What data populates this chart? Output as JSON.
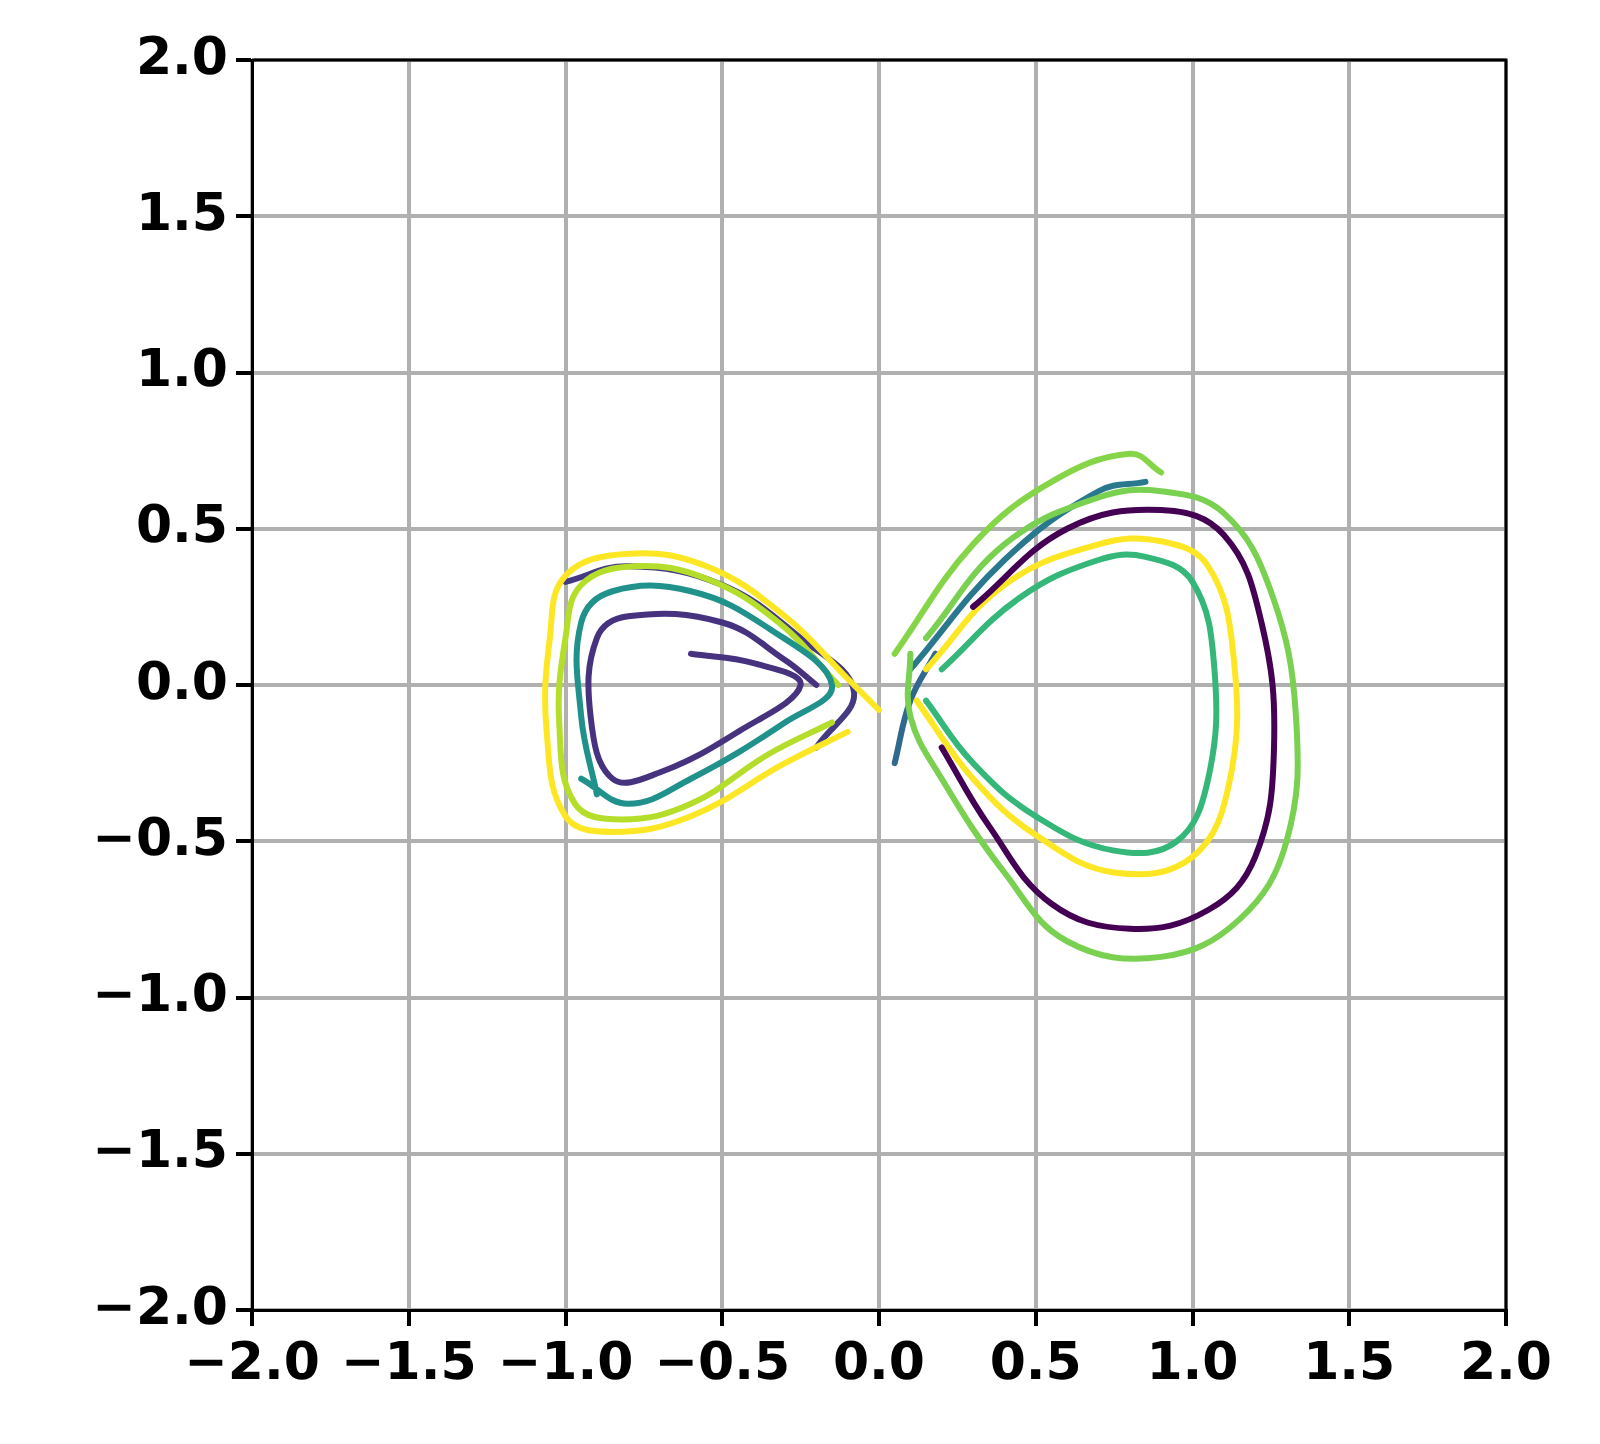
{
  "chart_data": {
    "type": "line",
    "xlim": [
      -2,
      2
    ],
    "ylim": [
      -2,
      2
    ],
    "xticks": [
      {
        "value": -2,
        "label": "−2.0"
      },
      {
        "value": -1.5,
        "label": "−1.5"
      },
      {
        "value": -1,
        "label": "−1.0"
      },
      {
        "value": -0.5,
        "label": "−0.5"
      },
      {
        "value": 0,
        "label": "0.0"
      },
      0.5,
      {
        "value": 1,
        "label": "1.0"
      },
      1.5,
      {
        "value": 2,
        "label": "2.0"
      }
    ],
    "yticks": [
      {
        "value": -2,
        "label": "−2.0"
      },
      {
        "value": -1.5,
        "label": "−1.5"
      },
      {
        "value": -1,
        "label": "−1.0"
      },
      {
        "value": -0.5,
        "label": "−0.5"
      },
      {
        "value": 0,
        "label": "0.0"
      },
      0.5,
      {
        "value": 1,
        "label": "1.0"
      },
      1.5,
      {
        "value": 2,
        "label": "2.0"
      }
    ],
    "grid": true,
    "legend": false,
    "marker": "none",
    "line_style": "solid",
    "series": [
      {
        "color": "#46327e",
        "x": [
          -0.6,
          -0.4,
          -0.25,
          -0.45,
          -0.7,
          -0.85,
          -0.92,
          -0.9,
          -0.8,
          -0.5,
          -0.3,
          -0.2
        ],
        "values": [
          0.1,
          0.07,
          0,
          -0.15,
          -0.28,
          -0.3,
          -0.1,
          0.15,
          0.22,
          0.2,
          0.08,
          0
        ]
      },
      {
        "color": "#21918c",
        "x": [
          -0.9,
          -0.95,
          -0.95,
          -0.85,
          -0.6,
          -0.35,
          -0.15,
          -0.3,
          -0.6,
          -0.8,
          -0.95
        ],
        "values": [
          -0.35,
          -0.1,
          0.2,
          0.3,
          0.3,
          0.18,
          0,
          -0.12,
          -0.3,
          -0.38,
          -0.3
        ]
      },
      {
        "color": "#fde725",
        "x": [
          -0.1,
          -0.3,
          -0.6,
          -0.85,
          -1.0,
          -1.06,
          -1.05,
          -1.0,
          -0.8,
          -0.55,
          -0.3,
          -0.1,
          0.0
        ],
        "values": [
          -0.15,
          -0.25,
          -0.42,
          -0.47,
          -0.42,
          -0.15,
          0.15,
          0.35,
          0.42,
          0.38,
          0.22,
          0.02,
          -0.08
        ]
      },
      {
        "color": "#b5de2b",
        "x": [
          -0.15,
          -0.35,
          -0.6,
          -0.82,
          -0.97,
          -1.02,
          -1.0,
          -0.95,
          -0.78,
          -0.55,
          -0.32,
          -0.13
        ],
        "values": [
          -0.12,
          -0.22,
          -0.38,
          -0.43,
          -0.38,
          -0.12,
          0.15,
          0.32,
          0.38,
          0.34,
          0.2,
          0.0
        ]
      },
      {
        "color": "#443983",
        "x": [
          -1.0,
          -0.8,
          -0.5,
          -0.25,
          -0.08,
          -0.2
        ],
        "values": [
          0.33,
          0.38,
          0.32,
          0.15,
          -0.02,
          -0.2
        ]
      },
      {
        "color": "#7ad151",
        "x": [
          0.15,
          0.4,
          0.7,
          0.9,
          1.1,
          1.25,
          1.33,
          1.3,
          1.15,
          0.9,
          0.6,
          0.4,
          0.2,
          0.1,
          0.1
        ],
        "values": [
          0.15,
          0.45,
          0.6,
          0.62,
          0.55,
          0.3,
          -0.1,
          -0.5,
          -0.75,
          -0.87,
          -0.82,
          -0.6,
          -0.3,
          -0.1,
          0.1
        ]
      },
      {
        "color": "#440154",
        "x": [
          0.3,
          0.6,
          0.9,
          1.1,
          1.22,
          1.26,
          1.2,
          1.05,
          0.8,
          0.55,
          0.35,
          0.2
        ],
        "values": [
          0.25,
          0.5,
          0.56,
          0.48,
          0.2,
          -0.2,
          -0.55,
          -0.72,
          -0.78,
          -0.7,
          -0.45,
          -0.2
        ]
      },
      {
        "color": "#fde725",
        "x": [
          0.15,
          0.4,
          0.7,
          0.9,
          1.05,
          1.13,
          1.12,
          1.0,
          0.75,
          0.5,
          0.3,
          0.12
        ],
        "values": [
          0.05,
          0.32,
          0.45,
          0.46,
          0.38,
          0.1,
          -0.3,
          -0.55,
          -0.6,
          -0.48,
          -0.3,
          -0.05
        ]
      },
      {
        "color": "#35b779",
        "x": [
          0.2,
          0.45,
          0.7,
          0.85,
          1.0,
          1.07,
          1.05,
          0.95,
          0.75,
          0.5,
          0.3,
          0.15
        ],
        "values": [
          0.05,
          0.28,
          0.4,
          0.41,
          0.33,
          0.05,
          -0.3,
          -0.5,
          -0.53,
          -0.42,
          -0.25,
          -0.05
        ]
      },
      {
        "color": "#86d549",
        "x": [
          0.05,
          0.3,
          0.55,
          0.8,
          0.9
        ],
        "values": [
          0.1,
          0.45,
          0.65,
          0.74,
          0.68
        ]
      },
      {
        "color": "#2a788e",
        "x": [
          0.1,
          0.4,
          0.7,
          0.85
        ],
        "values": [
          0.05,
          0.4,
          0.62,
          0.65
        ]
      },
      {
        "color": "#31688e",
        "x": [
          0.05,
          0.1,
          0.18
        ],
        "values": [
          -0.25,
          -0.05,
          0.1
        ]
      }
    ]
  }
}
